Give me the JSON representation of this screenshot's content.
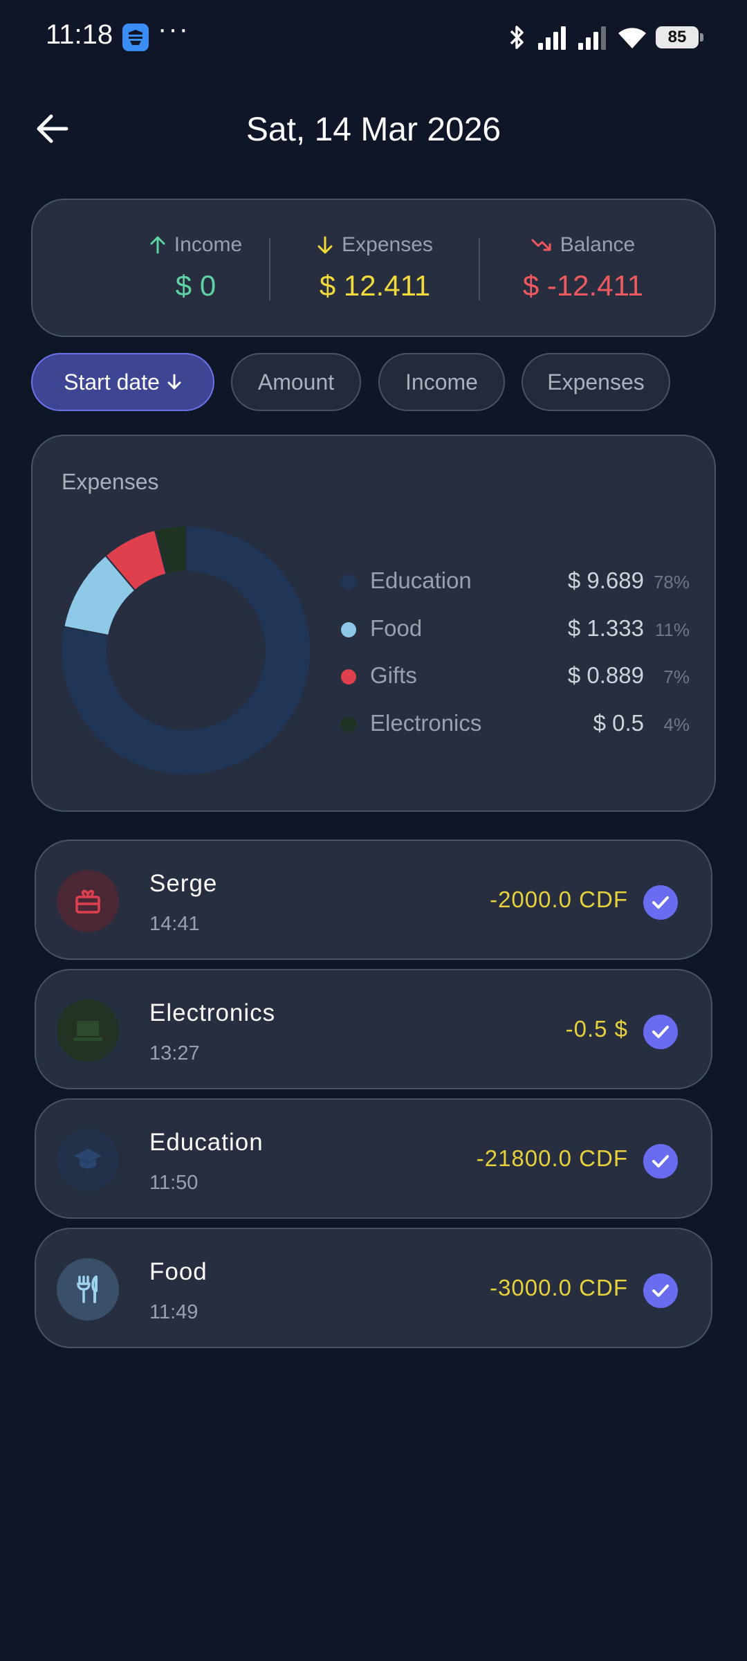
{
  "status_bar": {
    "time": "11:18",
    "dots": "···",
    "battery": "85"
  },
  "header": {
    "back_icon": "arrow-left-icon",
    "title": "Sat, 14 Mar 2026"
  },
  "summary": {
    "income": {
      "label": "Income",
      "value": "$ 0",
      "color": "#5fd3a3",
      "icon": "arrow-up-icon"
    },
    "expenses": {
      "label": "Expenses",
      "value": "$ 12.411",
      "color": "#f2da3a",
      "icon": "arrow-down-icon"
    },
    "balance": {
      "label": "Balance",
      "value": "$ -12.411",
      "color": "#f05a5f",
      "icon": "trending-down-icon"
    }
  },
  "sort_chips": [
    {
      "label": "Start date",
      "active": true,
      "icon": "arrow-down-icon"
    },
    {
      "label": "Amount",
      "active": false
    },
    {
      "label": "Income",
      "active": false
    },
    {
      "label": "Expenses",
      "active": false
    }
  ],
  "chart_data": {
    "type": "pie",
    "title": "Expenses",
    "categories": [
      "Education",
      "Food",
      "Gifts",
      "Electronics"
    ],
    "values": [
      9.689,
      1.333,
      0.889,
      0.5
    ],
    "amounts": [
      "$ 9.689",
      "$ 1.333",
      "$ 0.889",
      "$ 0.5"
    ],
    "percents": [
      "78%",
      "11%",
      "7%",
      "4%"
    ],
    "colors": [
      "#1f3656",
      "#8ec9e8",
      "#e0404e",
      "#1f3322"
    ]
  },
  "transactions": [
    {
      "name": "Serge",
      "time": "14:41",
      "amount": "-2000.0 CDF",
      "icon": "gift-icon",
      "icon_bg": "#4a2836",
      "icon_color": "#e0404e"
    },
    {
      "name": "Electronics",
      "time": "13:27",
      "amount": "-0.5 $",
      "icon": "laptop-icon",
      "icon_bg": "#243224",
      "icon_color": "#2c4a2c"
    },
    {
      "name": "Education",
      "time": "11:50",
      "amount": "-21800.0 CDF",
      "icon": "graduation-cap-icon",
      "icon_bg": "#233049",
      "icon_color": "#2a4670"
    },
    {
      "name": "Food",
      "time": "11:49",
      "amount": "-3000.0 CDF",
      "icon": "cutlery-icon",
      "icon_bg": "#3a5068",
      "icon_color": "#9ed4f0"
    }
  ]
}
